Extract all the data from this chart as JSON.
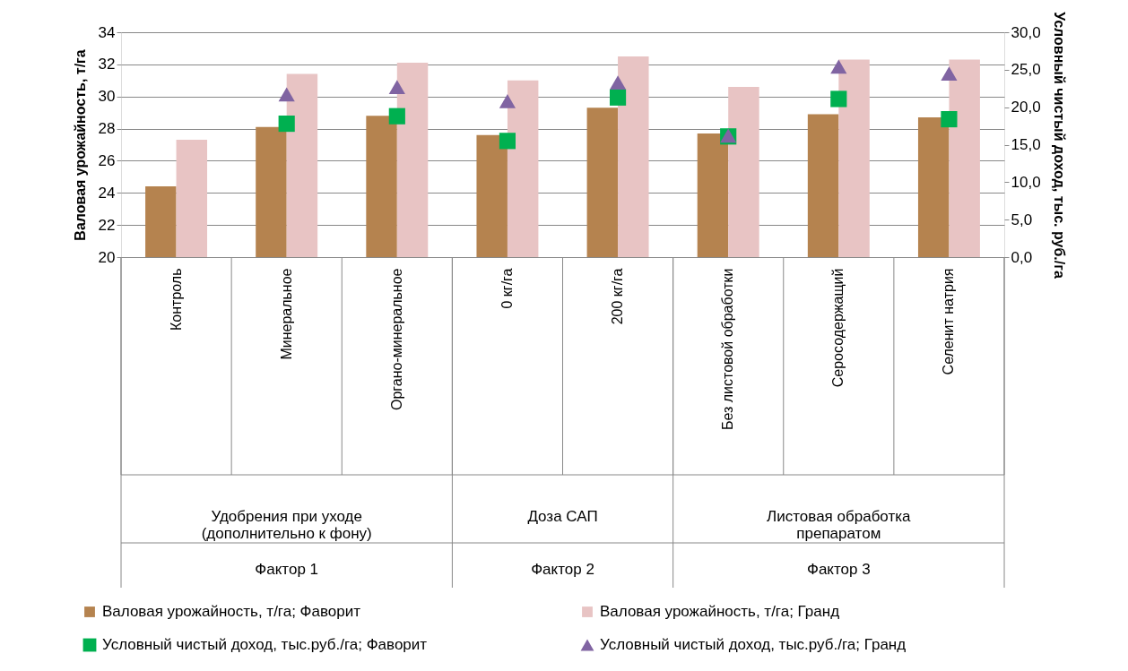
{
  "chart_data": {
    "type": "bar",
    "categories": [
      "Контроль",
      "Минеральное",
      "Органо-минеральное",
      "0 кг/га",
      "200 кг/га",
      "Без листовой обработки",
      "Серосодержащий",
      "Селенит натрия"
    ],
    "ylabel": "Валовая урожайность, т/га",
    "y2label": "Условный чистый доход, тыс. руб./га",
    "ylim": [
      20,
      34
    ],
    "yticks": [
      20,
      22,
      24,
      26,
      28,
      30,
      32,
      34
    ],
    "y2lim": [
      0,
      30
    ],
    "y2ticks": [
      {
        "value": 0,
        "label": "0,0"
      },
      {
        "value": 5,
        "label": "5,0"
      },
      {
        "value": 10,
        "label": "10,0"
      },
      {
        "value": 15,
        "label": "15,0"
      },
      {
        "value": 20,
        "label": "20,0"
      },
      {
        "value": 25,
        "label": "25,0"
      },
      {
        "value": 30,
        "label": "30,0"
      }
    ],
    "series": [
      {
        "name": "Валовая урожайность, т/га;  Фаворит",
        "color": "#b5834f",
        "values": [
          24.4,
          28.1,
          28.8,
          27.6,
          29.3,
          27.7,
          28.9,
          28.7
        ]
      },
      {
        "name": "Валовая урожайность, т/га;  Гранд",
        "color": "#e8c4c4",
        "values": [
          27.3,
          31.4,
          32.1,
          31.0,
          32.5,
          30.6,
          32.3,
          32.3
        ]
      },
      {
        "name": "Условный чистый доход, тыс.руб./га; Фаворит",
        "type": "scatter",
        "axis": "y2",
        "marker": "square",
        "color": "#00b050",
        "values": [
          null,
          17.8,
          18.8,
          15.5,
          21.3,
          16.1,
          21.1,
          18.4
        ]
      },
      {
        "name": "Условный чистый доход, тыс.руб./га; Гранд",
        "type": "scatter",
        "axis": "y2",
        "marker": "triangle",
        "color": "#8064a2",
        "values": [
          null,
          21.7,
          22.7,
          20.8,
          23.3,
          16.2,
          25.4,
          24.5
        ]
      }
    ],
    "annotations": [
      "Удобрения при уходе\n(дополнительно к фону)",
      "Доза САП",
      "Листовая обработка\nпрепаратом",
      "Фактор 1",
      "Фактор 2",
      "Фактор 3"
    ],
    "grid": "y",
    "legend": "bottom"
  }
}
